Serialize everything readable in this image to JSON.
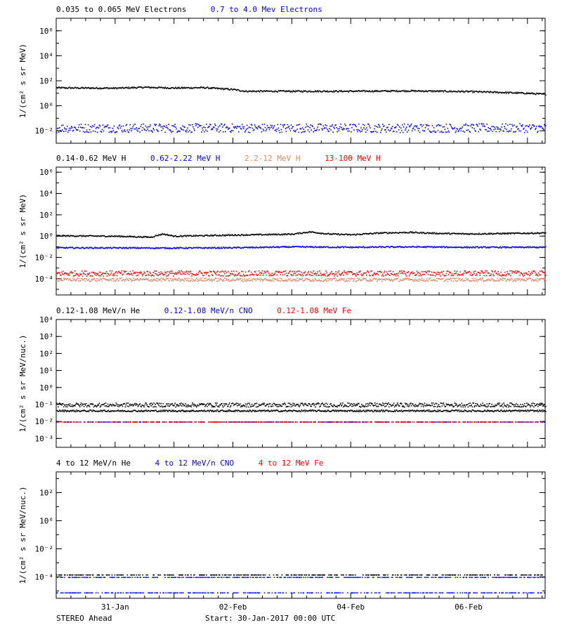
{
  "footer": {
    "left": "STEREO Ahead",
    "center": "Start: 30-Jan-2017 00:00 UTC"
  },
  "colors": {
    "black": "#000000",
    "blue": "#0000ff",
    "tan": "#d98c6a",
    "red": "#ff0000"
  },
  "chart_data": [
    {
      "type": "scatter",
      "id": "electrons",
      "yscale": "log",
      "ylabel": "1/(cm² s sr MeV)",
      "ylim": [
        0.001,
        10000000
      ],
      "yticks": [
        {
          "v": 0.01,
          "label": "10⁻²"
        },
        {
          "v": 1,
          "label": "10⁰"
        },
        {
          "v": 100,
          "label": "10²"
        },
        {
          "v": 10000,
          "label": "10⁴"
        },
        {
          "v": 1000000,
          "label": "10⁶"
        }
      ],
      "legend": [
        {
          "name": "0.035 to 0.065 MeV Electrons",
          "color": "#000000"
        },
        {
          "name": "0.7 to 4.0 Mev Electrons",
          "color": "#0000ff"
        }
      ],
      "series": [
        {
          "name": "0.035 to 0.065 MeV Electrons",
          "color": "#000000",
          "spread": 0.06,
          "points": [
            [
              0,
              30
            ],
            [
              1,
              28
            ],
            [
              1.5,
              33
            ],
            [
              2,
              29
            ],
            [
              2.5,
              31
            ],
            [
              3,
              22
            ],
            [
              3.2,
              16
            ],
            [
              4,
              16
            ],
            [
              4.5,
              16
            ],
            [
              5,
              16
            ],
            [
              6,
              17
            ],
            [
              7,
              15
            ],
            [
              7.5,
              13
            ],
            [
              8,
              11
            ],
            [
              8.3,
              9
            ]
          ]
        },
        {
          "name": "0.7 to 4.0 Mev Electrons",
          "color": "#0000ff",
          "spread": 0.35,
          "points": [
            [
              0,
              0.018
            ],
            [
              4,
              0.018
            ],
            [
              8.3,
              0.018
            ]
          ]
        }
      ]
    },
    {
      "type": "scatter",
      "id": "protons",
      "yscale": "log",
      "ylabel": "1/(cm² s sr MeV)",
      "ylim": [
        3e-06,
        3000000
      ],
      "yticks": [
        {
          "v": 0.0001,
          "label": "10⁻⁴"
        },
        {
          "v": 0.01,
          "label": "10⁻²"
        },
        {
          "v": 1,
          "label": "10⁰"
        },
        {
          "v": 100,
          "label": "10²"
        },
        {
          "v": 10000,
          "label": "10⁴"
        },
        {
          "v": 1000000,
          "label": "10⁶"
        }
      ],
      "legend": [
        {
          "name": "0.14-0.62 MeV H",
          "color": "#000000"
        },
        {
          "name": "0.62-2.22 MeV H",
          "color": "#0000ff"
        },
        {
          "name": "2.2-12 MeV H",
          "color": "#d98c6a"
        },
        {
          "name": "13-100 MeV H",
          "color": "#ff0000"
        }
      ],
      "series": [
        {
          "name": "0.14-0.62 MeV H",
          "color": "#000000",
          "spread": 0.06,
          "points": [
            [
              0,
              1.2
            ],
            [
              1,
              1.1
            ],
            [
              1.6,
              0.9
            ],
            [
              1.8,
              1.8
            ],
            [
              2,
              1.1
            ],
            [
              3,
              1.4
            ],
            [
              4,
              1.7
            ],
            [
              4.3,
              2.8
            ],
            [
              4.6,
              1.8
            ],
            [
              5,
              1.5
            ],
            [
              5.5,
              2.2
            ],
            [
              6,
              2.5
            ],
            [
              6.5,
              2
            ],
            [
              7,
              1.8
            ],
            [
              8,
              2.1
            ],
            [
              8.3,
              2.2
            ]
          ]
        },
        {
          "name": "0.62-2.22 MeV H",
          "color": "#0000ff",
          "spread": 0.06,
          "points": [
            [
              0,
              0.09
            ],
            [
              2,
              0.085
            ],
            [
              3,
              0.09
            ],
            [
              4,
              0.11
            ],
            [
              5,
              0.1
            ],
            [
              6,
              0.11
            ],
            [
              7,
              0.1
            ],
            [
              8.3,
              0.1
            ]
          ]
        },
        {
          "name": "13-100 MeV H",
          "color": "#ff0000",
          "spread": 0.25,
          "points": [
            [
              0,
              0.00035
            ],
            [
              4,
              0.00035
            ],
            [
              8.3,
              0.00035
            ]
          ]
        },
        {
          "name": "2.2-12 MeV H",
          "color": "#d98c6a",
          "spread": 0.15,
          "points": [
            [
              0,
              9e-05
            ],
            [
              4,
              9e-05
            ],
            [
              8.3,
              9e-05
            ]
          ]
        }
      ]
    },
    {
      "type": "scatter",
      "id": "heavy-low",
      "yscale": "log",
      "ylabel": "1/(cm² s sr MeV/nuc.)",
      "ylim": [
        0.0003,
        10000
      ],
      "yticks": [
        {
          "v": 0.001,
          "label": "10⁻³"
        },
        {
          "v": 0.01,
          "label": "10⁻²"
        },
        {
          "v": 0.1,
          "label": "10⁻¹"
        },
        {
          "v": 1,
          "label": "10⁰"
        },
        {
          "v": 10,
          "label": "10¹"
        },
        {
          "v": 100,
          "label": "10²"
        },
        {
          "v": 1000,
          "label": "10³"
        },
        {
          "v": 10000,
          "label": "10⁴"
        }
      ],
      "legend": [
        {
          "name": "0.12-1.08 MeV/n He",
          "color": "#000000"
        },
        {
          "name": "0.12-1.08 MeV/n CNO",
          "color": "#0000ff"
        },
        {
          "name": "0.12-1.08 MeV Fe",
          "color": "#ff0000"
        }
      ],
      "series": [
        {
          "name": "0.12-1.08 MeV/n He",
          "color": "#000000",
          "spread": 0.05,
          "points": [
            [
              0,
              0.045
            ],
            [
              8.3,
              0.045
            ]
          ]
        },
        {
          "name": "0.12-1.08 MeV/n He",
          "color": "#000000",
          "spread": 0.12,
          "points": [
            [
              0,
              0.1
            ],
            [
              8.3,
              0.1
            ]
          ]
        },
        {
          "name": "0.12-1.08 MeV/n CNO",
          "color": "#0000ff",
          "spread": 0.0,
          "points": [
            [
              0,
              0.01
            ],
            [
              8.3,
              0.01
            ]
          ]
        },
        {
          "name": "0.12-1.08 MeV Fe",
          "color": "#ff0000",
          "spread": 0.0,
          "points": [
            [
              0,
              0.01
            ],
            [
              8.3,
              0.01
            ]
          ]
        }
      ]
    },
    {
      "type": "scatter",
      "id": "heavy-high",
      "yscale": "log",
      "ylabel": "1/(cm² s sr MeV/nuc.)",
      "ylim": [
        3e-06,
        3000
      ],
      "yticks": [
        {
          "v": 0.0001,
          "label": "10⁻⁴"
        },
        {
          "v": 0.01,
          "label": "10⁻²"
        },
        {
          "v": 1,
          "label": "10⁰"
        },
        {
          "v": 100,
          "label": "10²"
        }
      ],
      "legend": [
        {
          "name": "4 to 12 MeV/n He",
          "color": "#000000"
        },
        {
          "name": "4 to 12 MeV/n CNO",
          "color": "#0000ff"
        },
        {
          "name": "4 to 12 MeV Fe",
          "color": "#ff0000"
        }
      ],
      "series": [
        {
          "name": "4 to 12 MeV/n CNO",
          "color": "#0000ff",
          "spread": 0.0,
          "points": [
            [
              0,
              0.0001
            ],
            [
              8.3,
              0.0001
            ]
          ]
        },
        {
          "name": "4 to 12 MeV/n He",
          "color": "#000000",
          "spread": 0.0,
          "points": [
            [
              0,
              0.00015
            ],
            [
              8.3,
              0.00015
            ]
          ]
        },
        {
          "name": "4 to 12 MeV/n CNO",
          "color": "#0000ff",
          "spread": 0.0,
          "points": [
            [
              0,
              8e-06
            ],
            [
              8.3,
              8e-06
            ]
          ]
        }
      ]
    }
  ],
  "xaxis": {
    "range_days": [
      0,
      8.3
    ],
    "ticks": [
      {
        "v": 1,
        "label": "31-Jan"
      },
      {
        "v": 3,
        "label": "02-Feb"
      },
      {
        "v": 5,
        "label": "04-Feb"
      },
      {
        "v": 7,
        "label": "06-Feb"
      }
    ]
  }
}
